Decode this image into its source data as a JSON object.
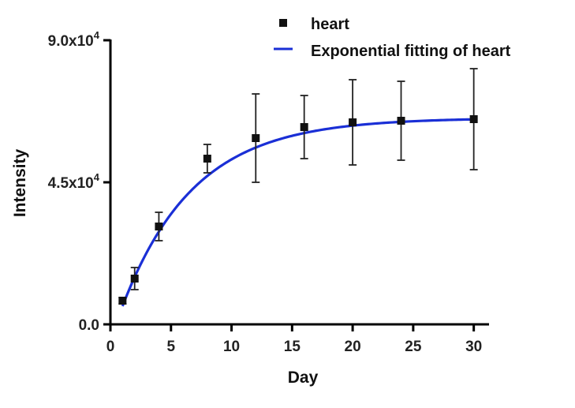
{
  "chart_data": {
    "type": "scatter",
    "title": "",
    "xlabel": "Day",
    "ylabel": "Intensity",
    "xlim": [
      0,
      31
    ],
    "ylim": [
      0,
      90000
    ],
    "x_ticks": [
      "0",
      "5",
      "10",
      "15",
      "20",
      "25",
      "30"
    ],
    "x_tick_values": [
      0,
      5,
      10,
      15,
      20,
      25,
      30
    ],
    "y_ticks": [
      "0.0",
      "4.5x10",
      "9.0x10"
    ],
    "y_tick_exponents": [
      "",
      "4",
      "4"
    ],
    "y_tick_values": [
      0,
      45000,
      90000
    ],
    "legend_position": "top-right",
    "series": [
      {
        "name": "heart",
        "marker": "square",
        "color": "#111111",
        "x": [
          1,
          2,
          4,
          8,
          12,
          16,
          20,
          24,
          30
        ],
        "y": [
          7500,
          14500,
          31000,
          52500,
          59000,
          62500,
          64000,
          64500,
          65000
        ],
        "error": [
          1000,
          3500,
          4500,
          4500,
          14000,
          10000,
          13500,
          12500,
          16000
        ]
      },
      {
        "name": "Exponential fitting of heart",
        "type": "line",
        "color": "#1a2fd6",
        "model": "y = 65400 * (1 - exp(-0.168 * (x - 0.45)))",
        "x_range": [
          1,
          30
        ]
      }
    ]
  }
}
